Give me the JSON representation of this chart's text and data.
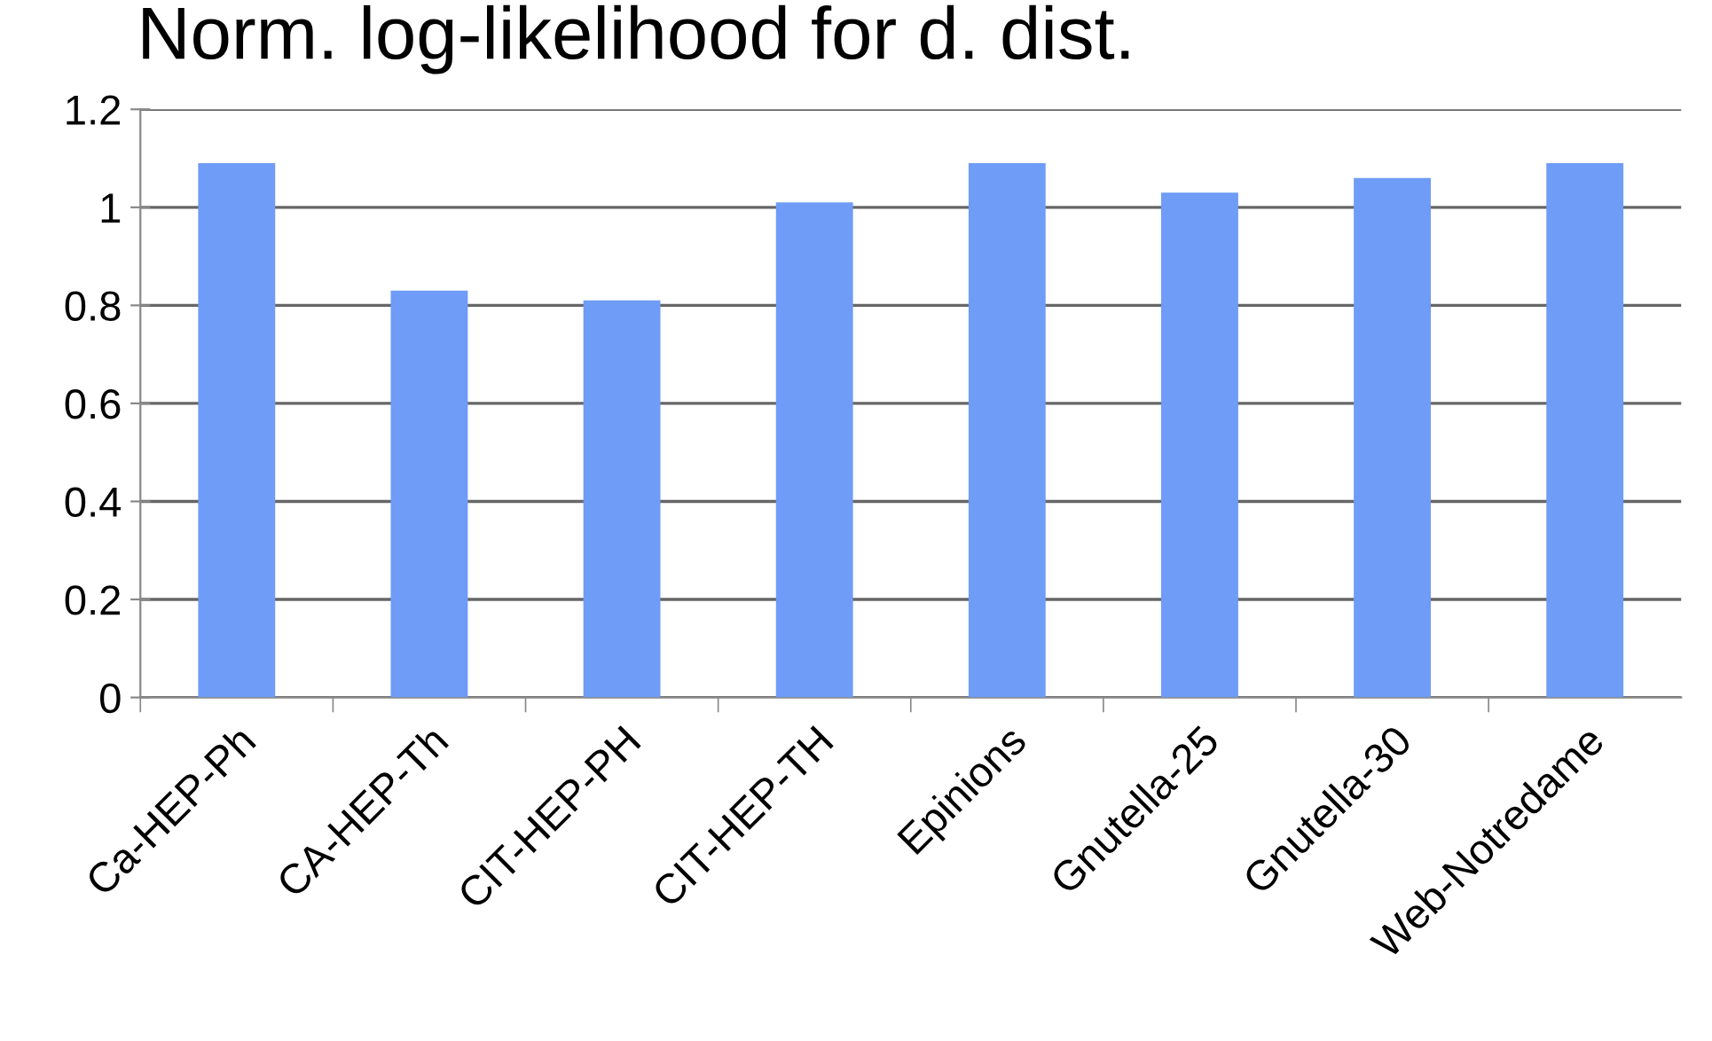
{
  "chart_data": {
    "type": "bar",
    "title": "Norm. log-likelihood for d. dist.",
    "categories": [
      "Ca-HEP-Ph",
      "CA-HEP-Th",
      "CIT-HEP-PH",
      "CIT-HEP-TH",
      "Epinions",
      "Gnutella-25",
      "Gnutella-30",
      "Web-Notredame"
    ],
    "values": [
      1.09,
      0.83,
      0.81,
      1.01,
      1.09,
      1.03,
      1.06,
      1.09
    ],
    "color": "#6e9cf6",
    "ylim": [
      0,
      1.2
    ],
    "yticks": [
      0,
      0.2,
      0.4,
      0.6,
      0.8,
      1,
      1.2
    ],
    "grid": "y",
    "legend": false
  }
}
